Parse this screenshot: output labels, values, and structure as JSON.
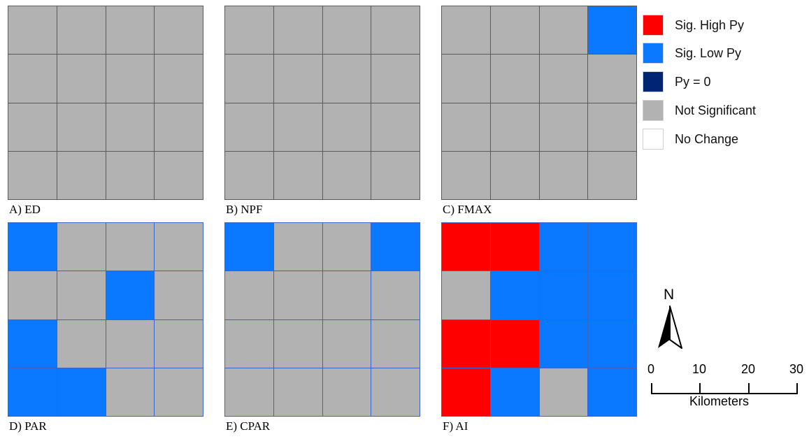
{
  "colors": {
    "sig_high": "#ff0000",
    "sig_low": "#0a78ff",
    "zero": "#002673",
    "not_sig": "#b2b2b2",
    "no_change": "#ffffff"
  },
  "panels": [
    {
      "label": "A) ED",
      "grid": [
        [
          "ns",
          "ns",
          "ns",
          "ns"
        ],
        [
          "ns",
          "ns",
          "ns",
          "ns"
        ],
        [
          "ns",
          "ns",
          "ns",
          "ns"
        ],
        [
          "ns",
          "ns",
          "ns",
          "ns"
        ]
      ]
    },
    {
      "label": "B) NPF",
      "grid": [
        [
          "ns",
          "ns",
          "ns",
          "ns"
        ],
        [
          "ns",
          "ns",
          "ns",
          "ns"
        ],
        [
          "ns",
          "ns",
          "ns",
          "ns"
        ],
        [
          "ns",
          "ns",
          "ns",
          "ns"
        ]
      ]
    },
    {
      "label": "C) FMAX",
      "grid": [
        [
          "ns",
          "ns",
          "ns",
          "low"
        ],
        [
          "ns",
          "ns",
          "ns",
          "ns"
        ],
        [
          "ns",
          "ns",
          "ns",
          "ns"
        ],
        [
          "ns",
          "ns",
          "ns",
          "ns"
        ]
      ]
    },
    {
      "label": "D) PAR",
      "grid": [
        [
          "low",
          "ns",
          "ns",
          "ns"
        ],
        [
          "ns",
          "ns",
          "low",
          "ns"
        ],
        [
          "low",
          "ns",
          "ns",
          "ns"
        ],
        [
          "low",
          "low",
          "ns",
          "ns"
        ]
      ]
    },
    {
      "label": "E) CPAR",
      "grid": [
        [
          "low",
          "ns",
          "ns",
          "low"
        ],
        [
          "ns",
          "ns",
          "ns",
          "ns"
        ],
        [
          "ns",
          "ns",
          "ns",
          "ns"
        ],
        [
          "ns",
          "ns",
          "ns",
          "ns"
        ]
      ]
    },
    {
      "label": "F) AI",
      "grid": [
        [
          "high",
          "high",
          "low",
          "low"
        ],
        [
          "ns",
          "low",
          "low",
          "low"
        ],
        [
          "high",
          "high",
          "low",
          "low"
        ],
        [
          "high",
          "low",
          "ns",
          "low"
        ]
      ]
    }
  ],
  "legend": [
    {
      "key": "high",
      "label": "Sig. High Py"
    },
    {
      "key": "low",
      "label": "Sig. Low Py"
    },
    {
      "key": "zero",
      "label": "Py = 0"
    },
    {
      "key": "ns",
      "label": "Not Significant"
    },
    {
      "key": "none",
      "label": "No Change"
    }
  ],
  "north_arrow": {
    "letter": "N",
    "icon": "north-arrow-icon"
  },
  "scale_bar": {
    "ticks": [
      "0",
      "10",
      "20",
      "30"
    ],
    "unit": "Kilometers"
  }
}
